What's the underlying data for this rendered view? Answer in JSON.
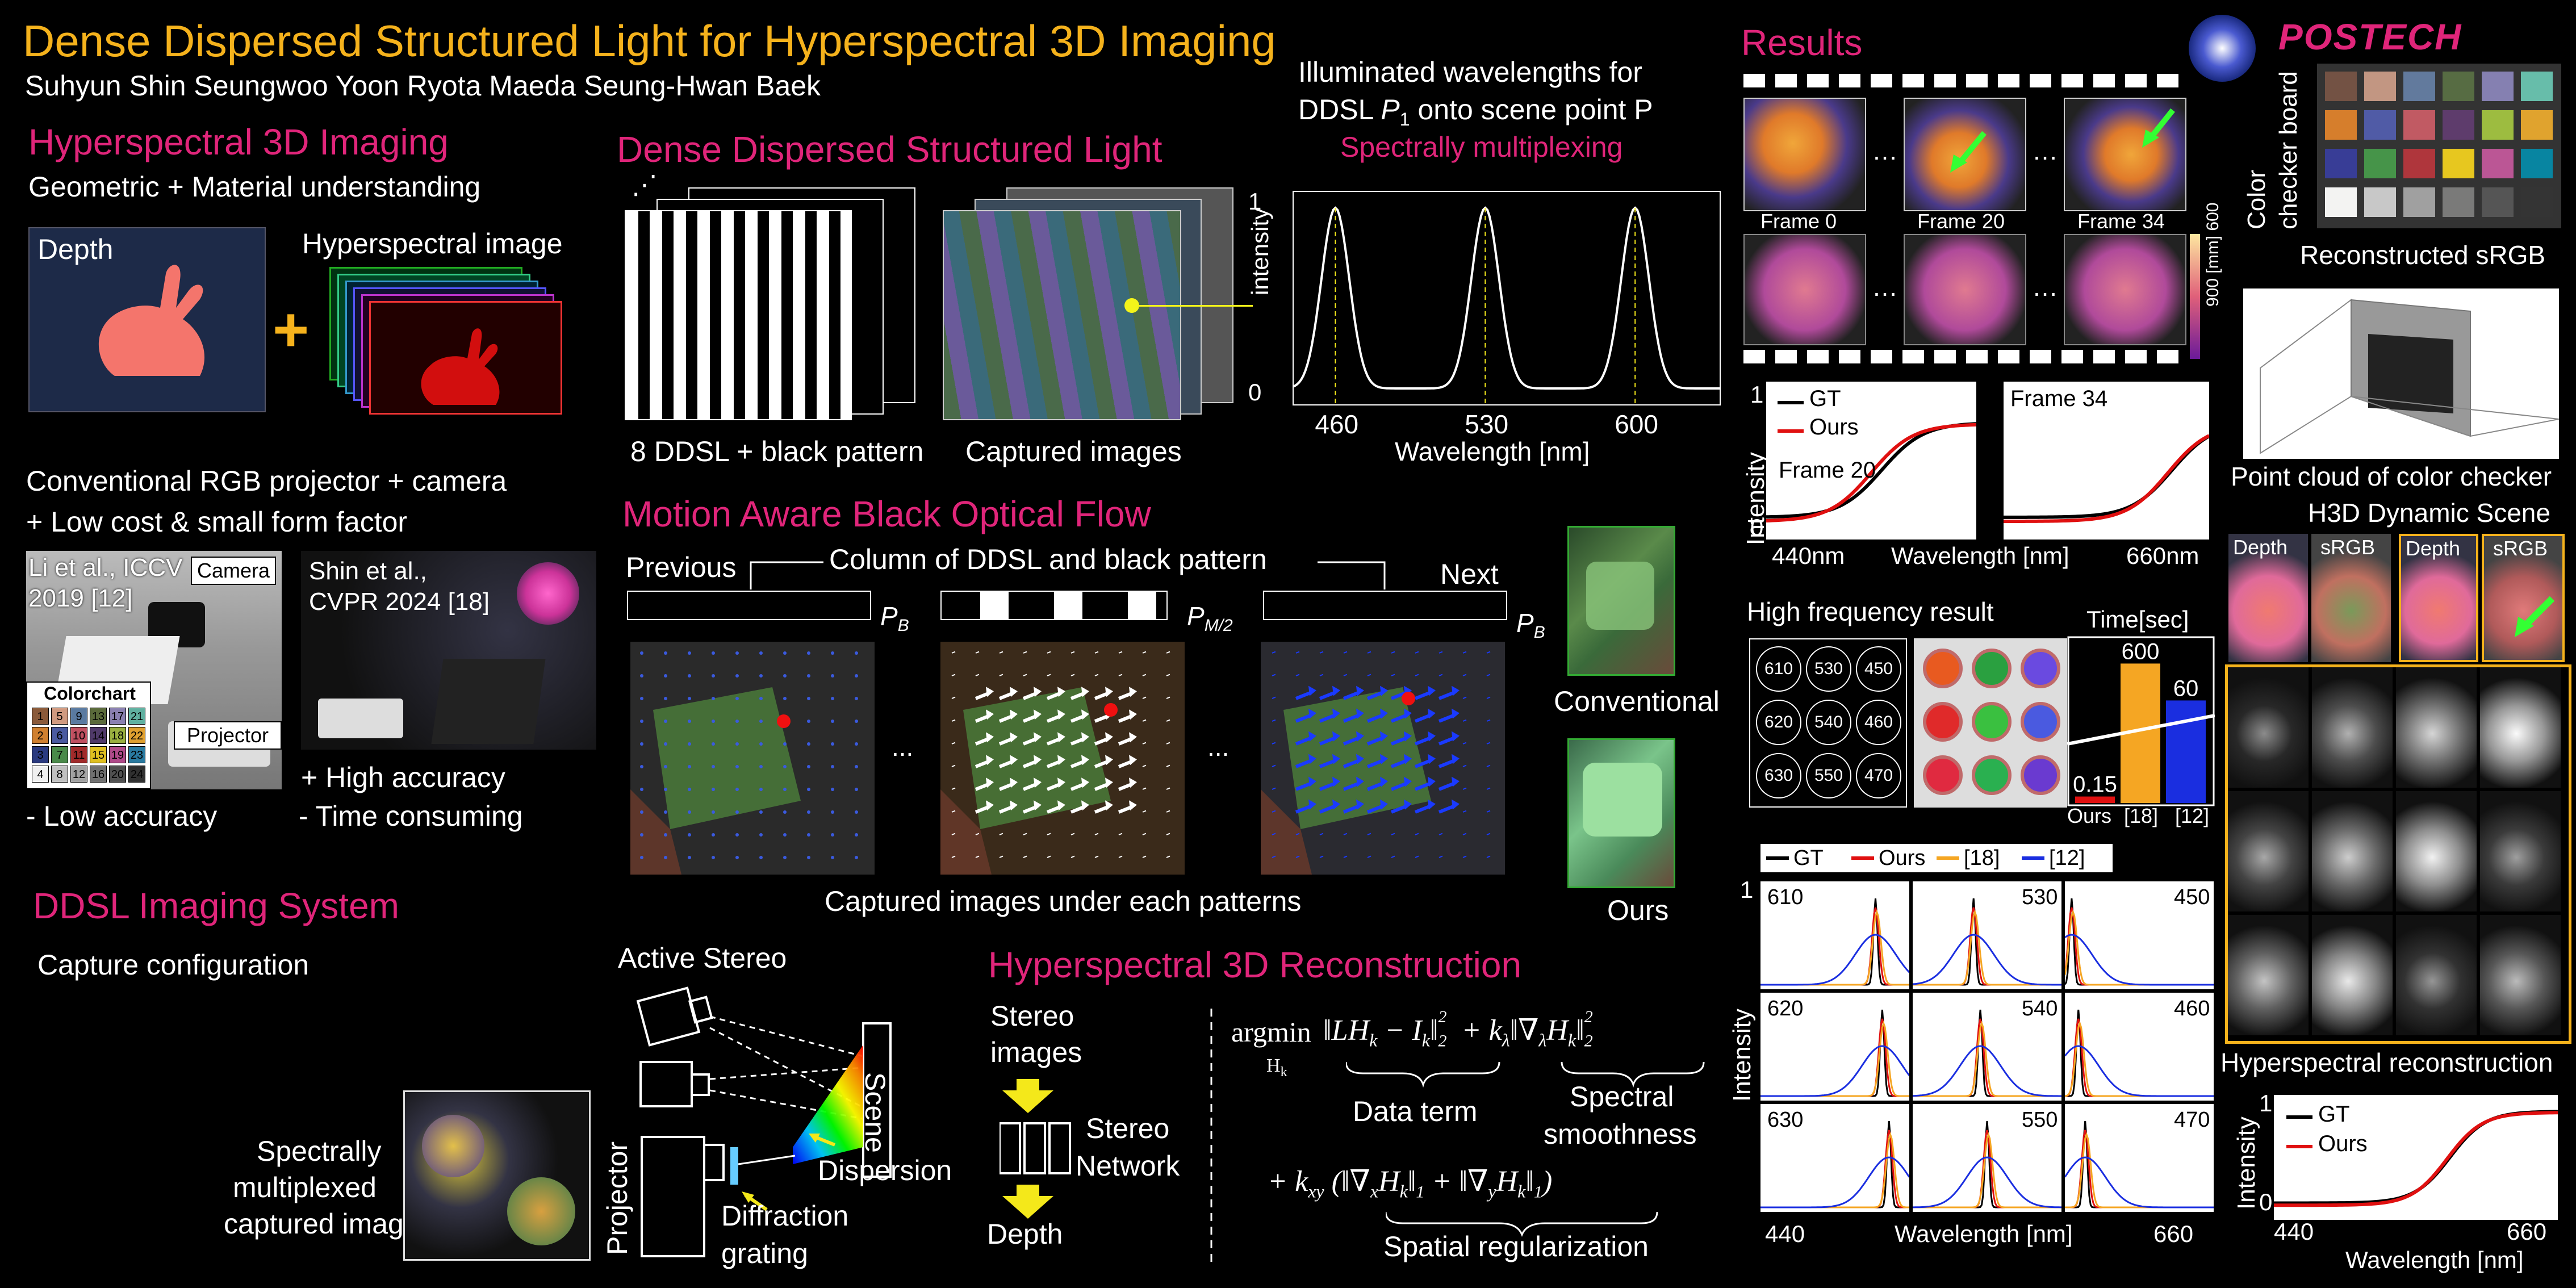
{
  "title": "Dense Dispersed Structured Light for Hyperspectral 3D Imaging",
  "authors": "Suhyun Shin  Seungwoo Yoon  Ryota Maeda  Seung-Hwan Baek",
  "logo": {
    "text": "POSTECH"
  },
  "colors": {
    "gold": "#f5b21c",
    "pink": "#e0257a",
    "gt": "#000000",
    "ours": "#e01010",
    "ref18": "#f5a623",
    "ref12": "#1a2ee0"
  },
  "h3d": {
    "heading": "Hyperspectral 3D Imaging",
    "subtitle": "Geometric + Material understanding",
    "depth_label": "Depth",
    "hs_label": "Hyperspectral image",
    "plus": "+"
  },
  "conventional": {
    "line1": "Conventional RGB projector + camera",
    "line2": "+ Low cost & small form factor",
    "li_ref": "Li et al., ICCV\n2019 [12]",
    "li_ref_l1": "Li et al., ICCV",
    "li_ref_l2": "2019 [12]",
    "camera_tag": "Camera",
    "colorchart_tag": "Colorchart",
    "projector_tag": "Projector",
    "shin_ref_l1": "Shin et al.,",
    "shin_ref_l2": "CVPR 2024 [18]",
    "pro": "+ High accuracy",
    "con1": "- Low accuracy",
    "con2": "- Time consuming",
    "chart_numbers": [
      "1",
      "5",
      "9",
      "13",
      "17",
      "21",
      "2",
      "6",
      "10",
      "14",
      "18",
      "22",
      "3",
      "7",
      "11",
      "15",
      "19",
      "23",
      "4",
      "8",
      "12",
      "16",
      "20",
      "24"
    ]
  },
  "ddsl": {
    "heading": "Dense Dispersed Structured Light",
    "pattern_label": "8 DDSL + black pattern",
    "captured_label": "Captured images",
    "illum_title_l1": "Illuminated wavelengths for",
    "illum_title_l2a": "DDSL ",
    "illum_title_l2b": "P",
    "illum_title_l2c": "1",
    "illum_title_l2d": " onto scene point P",
    "illum_sub": "Spectrally multiplexing",
    "y_axis": "intensity",
    "y_top": "1",
    "y_bottom": "0",
    "x_axis": "Wavelength [nm]"
  },
  "illum_chart": {
    "chart_data": {
      "type": "line",
      "x": [
        440,
        460,
        480,
        500,
        530,
        560,
        580,
        600,
        620,
        640
      ],
      "peaks": [
        460,
        530,
        600
      ],
      "peak_value": 1,
      "xlabel": "Wavelength [nm]",
      "ylabel": "intensity",
      "ticks": [
        "460",
        "530",
        "600"
      ],
      "ylim": [
        0,
        1
      ]
    }
  },
  "flow": {
    "heading": "Motion Aware  Black Optical Flow",
    "previous": "Previous",
    "column_label": "Column of DDSL and black pattern",
    "next": "Next",
    "pb": "P",
    "pb_sub": "B",
    "pm_sub": "M/2",
    "dots": "...",
    "caption": "Captured images under each patterns",
    "conventional": "Conventional",
    "ours": "Ours"
  },
  "system": {
    "heading": "DDSL Imaging System",
    "capture_config": "Capture configuration",
    "spectral_l1": "Spectrally",
    "spectral_l2": "multiplexed",
    "spectral_l3": "captured image",
    "active_stereo": "Active Stereo",
    "scene": "Scene",
    "projector": "Projector",
    "dispersion": "Dispersion",
    "diffraction_l1": "Diffraction",
    "diffraction_l2": "grating"
  },
  "recon": {
    "heading": "Hyperspectral 3D Reconstruction",
    "stereo_images_l1": "Stereo",
    "stereo_images_l2": "images",
    "stereo_net_l1": "Stereo",
    "stereo_net_l2": "Network",
    "depth": "Depth",
    "eq_argmin": "argmin",
    "eq_sub": "H",
    "eq_subk": "k",
    "eq_line1": "‖LH",
    "data_term": "Data term",
    "spectral_l1": "Spectral",
    "spectral_l2": "smoothness",
    "spatial": "Spatial regularization"
  },
  "results": {
    "heading": "Results",
    "frame0": "Frame 0",
    "frame20": "Frame 20",
    "frame34": "Frame 34",
    "cbar_top": "600",
    "cbar_bottom": "900",
    "cbar_unit": "[mm]",
    "frame20_plot": "Frame 20",
    "frame34_plot": "Frame 34",
    "gt": "GT",
    "ours": "Ours",
    "intensity": "Intensity",
    "i_top": "1",
    "i_bottom": "0",
    "x_left": "440nm",
    "x_mid": "Wavelength [nm]",
    "x_right": "660nm",
    "hf_title": "High frequency result",
    "hf_circles": [
      "610",
      "530",
      "450",
      "620",
      "540",
      "460",
      "630",
      "550",
      "470"
    ],
    "time_title": "Time[sec]",
    "time_labels": [
      "Ours",
      "[18]",
      "[12]"
    ],
    "multi_legend": [
      "GT",
      "Ours",
      "[18]",
      "[12]"
    ],
    "multi_labels": [
      "610",
      "530",
      "450",
      "620",
      "540",
      "460",
      "630",
      "550",
      "470"
    ],
    "multi_x_left": "440",
    "multi_x_mid": "Wavelength [nm]",
    "multi_x_right": "660",
    "multi_y": "Intensity",
    "multi_y_top": "1",
    "multi_y_bottom": "0",
    "color_checker_l1": "Color",
    "color_checker_l2": "checker board",
    "recon_srgb": "Reconstructed sRGB",
    "point_cloud": "Point cloud of color checker",
    "h3d_dynamic": "H3D Dynamic Scene",
    "depth": "Depth",
    "srgb": "sRGB",
    "hs_recon": "Hyperspectral reconstruction",
    "bottom_gt": "GT",
    "bottom_ours": "Ours",
    "bottom_y": "Intensity",
    "bottom_y1": "1",
    "bottom_y0": "0",
    "bottom_x_left": "440",
    "bottom_x_mid": "Wavelength [nm]",
    "bottom_x_right": "660"
  },
  "time_chart": {
    "chart_data": {
      "type": "bar",
      "categories": [
        "Ours",
        "[18]",
        "[12]"
      ],
      "values": [
        0.15,
        600,
        60
      ],
      "labels": [
        "0.15",
        "600",
        "60"
      ],
      "title": "Time[sec]",
      "colors": [
        "#e01010",
        "#f5a623",
        "#1a2ee0"
      ]
    }
  }
}
